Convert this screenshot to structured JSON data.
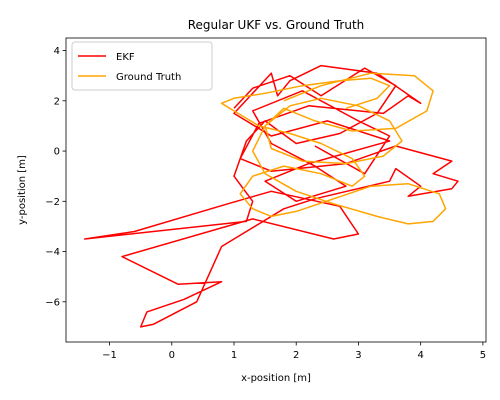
{
  "chart_data": {
    "type": "line",
    "title": "Regular UKF vs. Ground Truth",
    "xlabel": "x-position [m]",
    "ylabel": "y-position [m]",
    "xlim": [
      -1.7,
      5.05
    ],
    "ylim": [
      -7.6,
      4.5
    ],
    "xticks": [
      -1,
      0,
      1,
      2,
      3,
      4,
      5
    ],
    "yticks": [
      -6,
      -4,
      -2,
      0,
      2,
      4
    ],
    "grid": false,
    "legend_position": "top-left",
    "colors": {
      "ekf": "#ff0000",
      "ground_truth": "#ffa500"
    },
    "series": [
      {
        "name": "EKF",
        "x": [
          1.0,
          1.3,
          1.9,
          2.4,
          3.1,
          3.6,
          3.3,
          2.7,
          2.0,
          1.5,
          1.2,
          1.0,
          1.3,
          1.2,
          -1.4,
          -0.6,
          0.9,
          1.6,
          2.7,
          3.0,
          2.6,
          1.3,
          -0.8,
          0.1,
          0.8,
          0.2,
          -0.4,
          -0.5,
          -0.3,
          0.4,
          0.8,
          1.8,
          2.3,
          3.5,
          3.6,
          4.0,
          3.8,
          4.5,
          4.6,
          4.2,
          4.5,
          3.6,
          2.8,
          1.6,
          1.1,
          1.4,
          2.2,
          3.4,
          3.8,
          4.0,
          3.3,
          2.4,
          1.9,
          1.7,
          1.6,
          1.0,
          1.6,
          2.5,
          3.5,
          2.2,
          1.5,
          2.0,
          2.8,
          2.3,
          1.6,
          1.3,
          2.1,
          3.0,
          3.5,
          3.1,
          2.3
        ],
        "y": [
          1.7,
          2.5,
          3.0,
          2.2,
          3.3,
          2.6,
          1.5,
          0.7,
          0.3,
          1.2,
          0.4,
          -1.0,
          -2.0,
          -2.8,
          -3.5,
          -3.2,
          -2.1,
          -1.6,
          -2.2,
          -3.3,
          -3.5,
          -2.7,
          -4.2,
          -5.3,
          -5.2,
          -5.9,
          -6.4,
          -7.0,
          -6.9,
          -6.0,
          -3.8,
          -2.3,
          -1.9,
          -1.2,
          -0.7,
          -1.4,
          -1.8,
          -1.5,
          -1.2,
          -0.9,
          -0.4,
          0.2,
          -0.5,
          -0.8,
          -0.3,
          1.1,
          1.8,
          1.5,
          2.2,
          1.9,
          3.1,
          3.4,
          2.8,
          2.2,
          3.1,
          1.5,
          0.6,
          1.2,
          0.4,
          -0.5,
          -1.2,
          -2.0,
          -1.4,
          -0.6,
          0.3,
          1.6,
          2.4,
          1.2,
          0.6,
          -0.9,
          0.2
        ]
      },
      {
        "name": "Ground Truth",
        "x": [
          1.8,
          2.4,
          3.2,
          3.9,
          4.2,
          4.1,
          3.6,
          2.9,
          2.3,
          1.8,
          1.5,
          1.6,
          2.1,
          2.8,
          3.4,
          3.7,
          3.5,
          3.0,
          2.4,
          1.9,
          1.5,
          1.3,
          1.5,
          2.0,
          2.6,
          3.3,
          3.8,
          4.2,
          4.4,
          4.3,
          3.8,
          3.2,
          2.6,
          2.0,
          1.6,
          1.3,
          1.1,
          1.3,
          1.8,
          2.4,
          2.9,
          3.1,
          2.9,
          2.4,
          1.9,
          1.4,
          1.0,
          0.8,
          1.0,
          1.5,
          2.1,
          2.7,
          3.2,
          3.5,
          3.3,
          2.8
        ],
        "y": [
          2.0,
          2.6,
          3.1,
          3.0,
          2.4,
          1.6,
          0.9,
          0.8,
          1.2,
          1.7,
          1.0,
          0.1,
          -0.4,
          -0.5,
          -0.2,
          0.4,
          1.2,
          1.8,
          2.1,
          1.8,
          1.0,
          0.0,
          -0.9,
          -1.6,
          -2.1,
          -2.6,
          -2.9,
          -2.8,
          -2.3,
          -1.7,
          -1.3,
          -1.4,
          -1.9,
          -2.4,
          -2.6,
          -2.3,
          -1.7,
          -1.0,
          -0.6,
          -0.9,
          -1.4,
          -1.0,
          -0.3,
          0.3,
          0.7,
          1.0,
          1.6,
          1.9,
          2.1,
          2.3,
          2.6,
          2.8,
          2.9,
          2.6,
          2.1,
          1.7
        ]
      }
    ]
  }
}
